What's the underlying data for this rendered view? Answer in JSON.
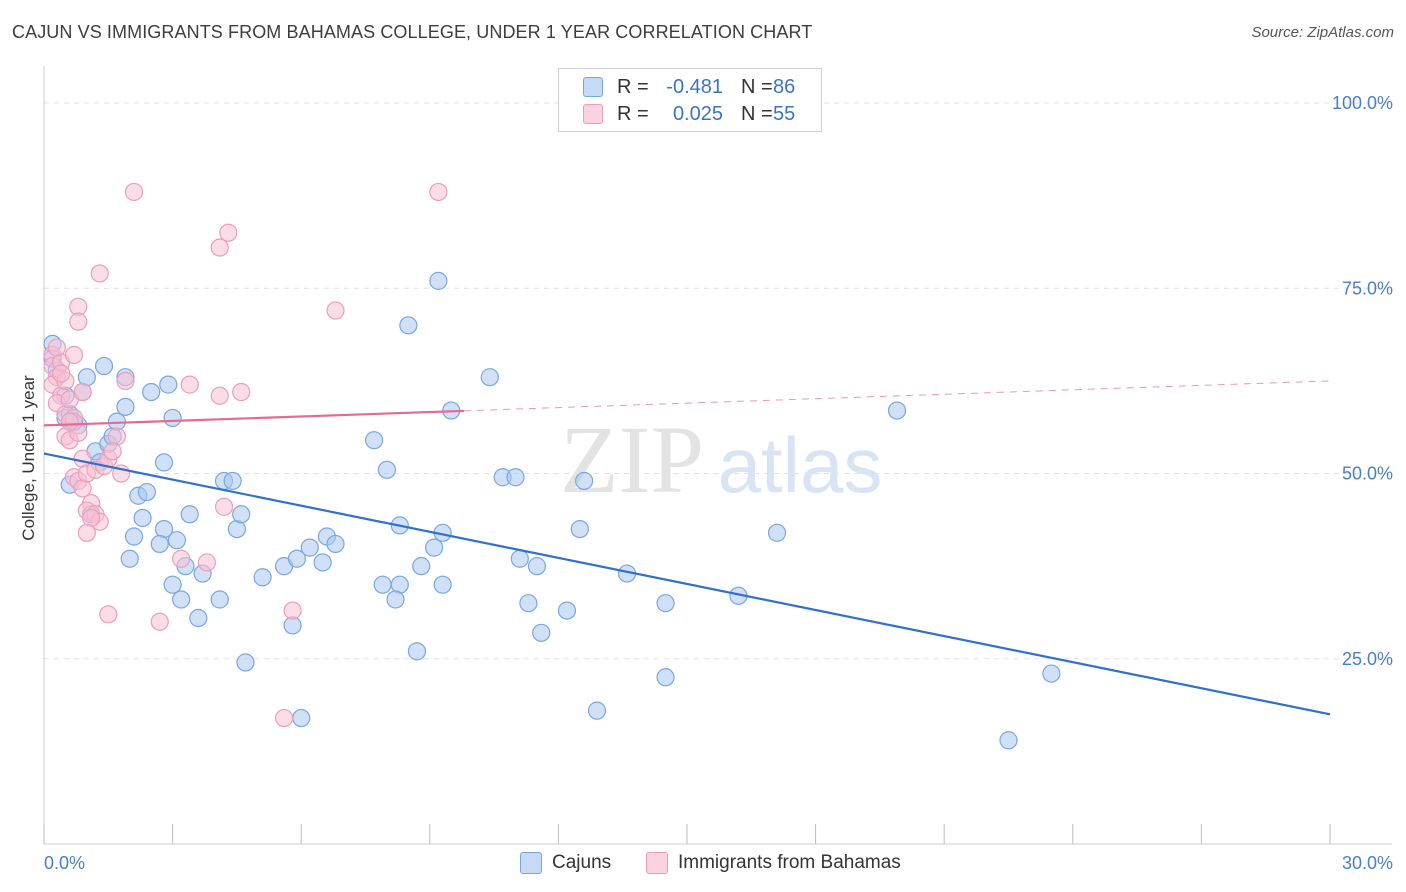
{
  "title": "CAJUN VS IMMIGRANTS FROM BAHAMAS COLLEGE, UNDER 1 YEAR CORRELATION CHART",
  "source": "Source: ZipAtlas.com",
  "watermark": {
    "zip": "ZIP",
    "atlas": "atlas"
  },
  "legend_top": [
    {
      "r_label": "R =",
      "r_value": "-0.481",
      "n_label": "N =",
      "n_value": "86",
      "color": "#aac8f0",
      "edge": "#7aa6e0"
    },
    {
      "r_label": "R =",
      "r_value": "0.025",
      "n_label": "N =",
      "n_value": "55",
      "color": "#f7c1d4",
      "edge": "#ee9dbb"
    }
  ],
  "chart_data": {
    "type": "scatter",
    "title": "CAJUN VS IMMIGRANTS FROM BAHAMAS COLLEGE, UNDER 1 YEAR CORRELATION CHART",
    "xlabel": "",
    "ylabel": "College, Under 1 year",
    "xlim": [
      0,
      30
    ],
    "ylim": [
      0,
      105
    ],
    "x_tick_labels": [
      "0.0%",
      "30.0%"
    ],
    "y_ticks": [
      25,
      50,
      75,
      100
    ],
    "y_tick_labels": [
      "25.0%",
      "50.0%",
      "75.0%",
      "100.0%"
    ],
    "grid": true,
    "legend_placement": "bottom",
    "series": [
      {
        "name": "Cajuns",
        "color": "#aac8f0",
        "edge": "#7aa6e0",
        "trend": {
          "x": [
            0,
            30
          ],
          "y": [
            52.7,
            17.5
          ],
          "color": "#2f6fd0",
          "dashed_from": null
        },
        "points": [
          [
            0.2,
            67.5
          ],
          [
            0.2,
            65.5
          ],
          [
            0.3,
            64
          ],
          [
            0.5,
            57.5
          ],
          [
            0.6,
            58
          ],
          [
            0.5,
            60.5
          ],
          [
            0.8,
            56.5
          ],
          [
            0.7,
            57
          ],
          [
            0.6,
            48.5
          ],
          [
            0.9,
            61
          ],
          [
            1.0,
            63
          ],
          [
            1.4,
            64.5
          ],
          [
            1.9,
            63
          ],
          [
            1.1,
            44.5
          ],
          [
            1.2,
            53
          ],
          [
            1.3,
            51.5
          ],
          [
            1.5,
            54
          ],
          [
            1.6,
            55
          ],
          [
            1.7,
            57
          ],
          [
            1.9,
            59
          ],
          [
            2.5,
            61
          ],
          [
            2.2,
            47
          ],
          [
            2.4,
            47.5
          ],
          [
            2.9,
            62
          ],
          [
            3.0,
            57.5
          ],
          [
            2.8,
            51.5
          ],
          [
            2.3,
            44
          ],
          [
            2.1,
            41.5
          ],
          [
            2.8,
            42.5
          ],
          [
            3.4,
            44.5
          ],
          [
            3.1,
            41
          ],
          [
            2.7,
            40.5
          ],
          [
            2.0,
            38.5
          ],
          [
            3.3,
            37.5
          ],
          [
            3.7,
            36.5
          ],
          [
            3.0,
            35
          ],
          [
            3.2,
            33
          ],
          [
            3.6,
            30.5
          ],
          [
            4.1,
            33
          ],
          [
            4.5,
            42.5
          ],
          [
            4.2,
            49
          ],
          [
            4.4,
            49
          ],
          [
            4.6,
            44.5
          ],
          [
            5.1,
            36
          ],
          [
            5.6,
            37.5
          ],
          [
            5.9,
            38.5
          ],
          [
            6.2,
            40
          ],
          [
            6.6,
            41.5
          ],
          [
            6.5,
            38
          ],
          [
            6.8,
            40.5
          ],
          [
            7.7,
            54.5
          ],
          [
            8.0,
            50.5
          ],
          [
            8.3,
            43
          ],
          [
            7.9,
            35
          ],
          [
            8.3,
            35
          ],
          [
            8.2,
            33
          ],
          [
            8.7,
            26
          ],
          [
            8.8,
            37.5
          ],
          [
            9.1,
            40
          ],
          [
            9.3,
            35
          ],
          [
            9.3,
            42
          ],
          [
            9.5,
            58.5
          ],
          [
            10.4,
            63
          ],
          [
            10.7,
            49.5
          ],
          [
            11.0,
            49.5
          ],
          [
            11.1,
            38.5
          ],
          [
            11.5,
            37.5
          ],
          [
            11.3,
            32.5
          ],
          [
            12.2,
            31.5
          ],
          [
            11.6,
            28.5
          ],
          [
            12.5,
            42.5
          ],
          [
            12.6,
            49
          ],
          [
            13.6,
            36.5
          ],
          [
            14.5,
            32.5
          ],
          [
            14.5,
            22.5
          ],
          [
            16.2,
            33.5
          ],
          [
            17.1,
            42
          ],
          [
            19.9,
            58.5
          ],
          [
            23.5,
            23
          ],
          [
            22.5,
            14
          ],
          [
            8.5,
            70
          ],
          [
            9.2,
            76
          ],
          [
            5.8,
            29.5
          ],
          [
            6.0,
            17
          ],
          [
            4.7,
            24.5
          ],
          [
            12.9,
            18
          ]
        ]
      },
      {
        "name": "Immigrants from Bahamas",
        "color": "#f7c1d4",
        "edge": "#ee9dbb",
        "trend": {
          "x": [
            0,
            30
          ],
          "y": [
            56.5,
            62.5
          ],
          "color": "#e46a94",
          "dashed_from": 9.8
        },
        "points": [
          [
            0.2,
            66
          ],
          [
            0.2,
            64.5
          ],
          [
            0.3,
            63
          ],
          [
            0.2,
            62
          ],
          [
            0.4,
            60.5
          ],
          [
            0.3,
            59.5
          ],
          [
            0.5,
            58
          ],
          [
            0.5,
            55
          ],
          [
            0.6,
            54.5
          ],
          [
            0.4,
            65
          ],
          [
            0.5,
            62.5
          ],
          [
            0.6,
            60
          ],
          [
            0.7,
            57.5
          ],
          [
            0.8,
            55.5
          ],
          [
            0.9,
            52
          ],
          [
            0.7,
            49.5
          ],
          [
            0.8,
            49
          ],
          [
            0.9,
            48
          ],
          [
            1.0,
            50
          ],
          [
            1.1,
            46
          ],
          [
            1.0,
            45
          ],
          [
            1.2,
            44.5
          ],
          [
            1.3,
            43.5
          ],
          [
            1.2,
            50.5
          ],
          [
            1.4,
            51
          ],
          [
            1.5,
            52
          ],
          [
            1.7,
            55
          ],
          [
            1.8,
            50
          ],
          [
            1.1,
            44
          ],
          [
            1.0,
            42
          ],
          [
            0.6,
            57
          ],
          [
            0.7,
            66
          ],
          [
            0.8,
            72.5
          ],
          [
            0.8,
            70.5
          ],
          [
            1.3,
            77
          ],
          [
            2.1,
            88
          ],
          [
            4.1,
            80.5
          ],
          [
            4.3,
            82.5
          ],
          [
            9.2,
            88
          ],
          [
            6.8,
            72
          ],
          [
            3.4,
            62
          ],
          [
            4.1,
            60.5
          ],
          [
            4.6,
            61
          ],
          [
            4.2,
            45.5
          ],
          [
            3.8,
            38
          ],
          [
            3.2,
            38.5
          ],
          [
            2.7,
            30
          ],
          [
            1.5,
            31
          ],
          [
            5.8,
            31.5
          ],
          [
            5.6,
            17
          ],
          [
            0.9,
            61
          ],
          [
            0.3,
            67
          ],
          [
            0.4,
            63.5
          ],
          [
            1.9,
            62.5
          ],
          [
            1.6,
            53
          ]
        ]
      }
    ]
  }
}
